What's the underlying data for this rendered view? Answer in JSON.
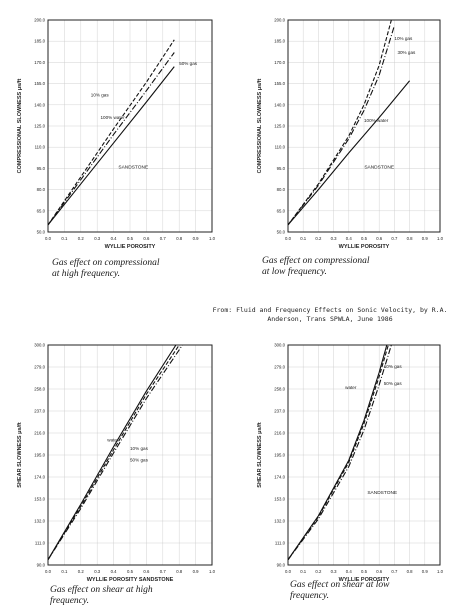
{
  "source_note": "From: Fluid and Frequency Effects on Sonic Velocity, by\nR.A. Anderson, Trans SPWLA, June 1986",
  "chart_data": [
    {
      "type": "line",
      "caption": "Gas effect on compressional\nat high frequency.",
      "xlabel": "WYLLIE POROSITY",
      "ylabel": "COMPRESSIONAL SLOWNESS μs/ft",
      "xlim": [
        0.0,
        1.0
      ],
      "ylim": [
        50.0,
        200.0
      ],
      "x_ticks": [
        "0.0",
        "0.1",
        "0.2",
        "0.3",
        "0.4",
        "0.5",
        "0.6",
        "0.7",
        "0.8",
        "0.9",
        "1.0"
      ],
      "y_ticks": [
        "50.0",
        "65.0",
        "80.0",
        "95.0",
        "110.0",
        "125.0",
        "140.0",
        "155.0",
        "170.0",
        "185.0",
        "200.0"
      ],
      "annotations": [
        "SANDSTONE"
      ],
      "series": [
        {
          "name": "10% gas",
          "x": [
            0.0,
            0.2,
            0.4,
            0.6,
            0.77
          ],
          "y": [
            55,
            89,
            123,
            156,
            186
          ]
        },
        {
          "name": "50% gas",
          "x": [
            0.0,
            0.2,
            0.4,
            0.6,
            0.77
          ],
          "y": [
            55,
            87,
            119,
            150,
            177
          ]
        },
        {
          "name": "100% water",
          "x": [
            0.0,
            0.2,
            0.4,
            0.6,
            0.77
          ],
          "y": [
            55,
            84,
            113,
            142,
            167
          ]
        }
      ]
    },
    {
      "type": "line",
      "caption": "Gas effect on compressional\nat low frequency.",
      "xlabel": "WYLLIE POROSITY",
      "ylabel": "COMPRESSIONAL SLOWNESS μs/ft",
      "xlim": [
        0.0,
        1.0
      ],
      "ylim": [
        50.0,
        200.0
      ],
      "x_ticks": [
        "0.0",
        "0.1",
        "0.2",
        "0.3",
        "0.4",
        "0.5",
        "0.6",
        "0.7",
        "0.8",
        "0.9",
        "1.0"
      ],
      "y_ticks": [
        "50.0",
        "65.0",
        "80.0",
        "95.0",
        "110.0",
        "125.0",
        "140.0",
        "155.0",
        "170.0",
        "185.0",
        "200.0"
      ],
      "annotations": [
        "SANDSTONE"
      ],
      "series": [
        {
          "name": "10% gas",
          "x": [
            0.0,
            0.2,
            0.4,
            0.5,
            0.6,
            0.68
          ],
          "y": [
            55,
            84,
            118,
            140,
            168,
            200
          ]
        },
        {
          "name": "30% gas",
          "x": [
            0.0,
            0.2,
            0.4,
            0.5,
            0.6,
            0.7
          ],
          "y": [
            55,
            83,
            116,
            136,
            161,
            196
          ]
        },
        {
          "name": "100% water",
          "x": [
            0.0,
            0.2,
            0.4,
            0.6,
            0.8
          ],
          "y": [
            55,
            80,
            106,
            131,
            157
          ]
        }
      ]
    },
    {
      "type": "line",
      "caption": "Gas effect on shear at high\nfrequency.",
      "xlabel": "WYLLIE POROSITY SANDSTONE",
      "ylabel": "SHEAR SLOWNESS μs/ft",
      "xlim": [
        0.0,
        1.0
      ],
      "ylim": [
        90.0,
        300.0
      ],
      "x_ticks": [
        "0.0",
        "0.1",
        "0.2",
        "0.3",
        "0.4",
        "0.5",
        "0.6",
        "0.7",
        "0.8",
        "0.9",
        "1.0"
      ],
      "y_ticks": [
        "90.0",
        "111.0",
        "132.0",
        "153.0",
        "174.0",
        "195.0",
        "216.0",
        "237.0",
        "258.0",
        "279.0",
        "300.0"
      ],
      "annotations": [],
      "series": [
        {
          "name": "water",
          "x": [
            0.0,
            0.2,
            0.4,
            0.6,
            0.78
          ],
          "y": [
            95,
            148,
            203,
            256,
            300
          ]
        },
        {
          "name": "10% gas",
          "x": [
            0.0,
            0.2,
            0.4,
            0.6,
            0.8
          ],
          "y": [
            95,
            146,
            200,
            253,
            300
          ]
        },
        {
          "name": "50% gas",
          "x": [
            0.0,
            0.2,
            0.4,
            0.6,
            0.82
          ],
          "y": [
            95,
            144,
            197,
            249,
            300
          ]
        }
      ]
    },
    {
      "type": "line",
      "caption": "Gas effect on shear at low\nfrequency.",
      "xlabel": "WYLLIE POROSITY",
      "ylabel": "SHEAR SLOWNESS μs/ft",
      "xlim": [
        0.0,
        1.0
      ],
      "ylim": [
        90.0,
        300.0
      ],
      "x_ticks": [
        "0.0",
        "0.1",
        "0.2",
        "0.3",
        "0.4",
        "0.5",
        "0.6",
        "0.7",
        "0.8",
        "0.9",
        "1.0"
      ],
      "y_ticks": [
        "90.0",
        "111.0",
        "132.0",
        "153.0",
        "174.0",
        "195.0",
        "216.0",
        "237.0",
        "258.0",
        "279.0",
        "300.0"
      ],
      "annotations": [
        "SANDSTONE"
      ],
      "series": [
        {
          "name": "water",
          "x": [
            0.0,
            0.2,
            0.4,
            0.5,
            0.6,
            0.65
          ],
          "y": [
            95,
            137,
            190,
            228,
            274,
            300
          ]
        },
        {
          "name": "10% gas",
          "x": [
            0.0,
            0.2,
            0.4,
            0.5,
            0.6,
            0.66
          ],
          "y": [
            95,
            136,
            188,
            225,
            270,
            300
          ]
        },
        {
          "name": "50% gas",
          "x": [
            0.0,
            0.2,
            0.4,
            0.5,
            0.6,
            0.68
          ],
          "y": [
            95,
            134,
            184,
            219,
            262,
            300
          ]
        }
      ]
    }
  ]
}
